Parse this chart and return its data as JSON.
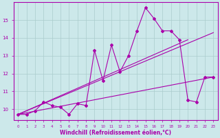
{
  "xlabel": "Windchill (Refroidissement éolien,°C)",
  "bg_color": "#cce8ea",
  "line_color": "#aa00aa",
  "grid_color": "#aacccc",
  "x_data": [
    0,
    1,
    2,
    3,
    4,
    5,
    6,
    7,
    8,
    9,
    10,
    11,
    12,
    13,
    14,
    15,
    16,
    17,
    18,
    19,
    20,
    21,
    22,
    23
  ],
  "y_main": [
    9.7,
    9.7,
    9.9,
    10.4,
    10.2,
    10.1,
    9.7,
    10.3,
    10.2,
    13.3,
    11.6,
    13.6,
    12.1,
    13.0,
    14.4,
    15.7,
    15.1,
    14.4,
    14.4,
    13.9,
    10.5,
    10.4,
    11.8,
    11.8
  ],
  "trend1_x": [
    0,
    20
  ],
  "trend1_y": [
    9.7,
    13.9
  ],
  "trend2_x": [
    0,
    23
  ],
  "trend2_y": [
    9.7,
    14.3
  ],
  "trend3_x": [
    0,
    23
  ],
  "trend3_y": [
    9.7,
    11.8
  ],
  "xlim": [
    -0.5,
    23.5
  ],
  "ylim": [
    9.4,
    16.0
  ],
  "xticks": [
    0,
    1,
    2,
    3,
    4,
    5,
    6,
    7,
    8,
    9,
    10,
    11,
    12,
    13,
    14,
    15,
    16,
    17,
    18,
    19,
    20,
    21,
    22,
    23
  ],
  "yticks": [
    10,
    11,
    12,
    13,
    14,
    15
  ]
}
